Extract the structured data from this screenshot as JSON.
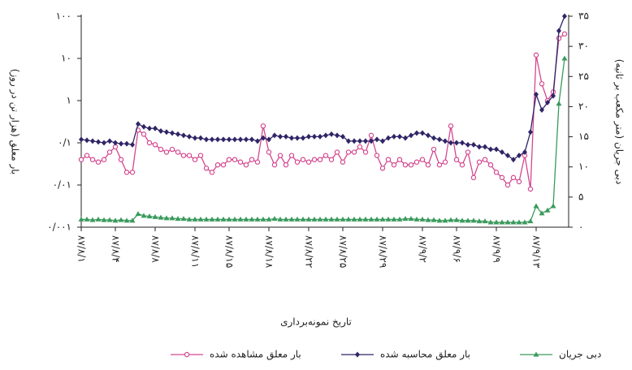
{
  "chart_data": {
    "type": "line",
    "x_label": "تاریخ نمونه‌برداری",
    "y_label": "بار معلق (هزار تن در روز)",
    "y2_label": "دبی جریان (متر مکعب بر ثانیه)",
    "categories": [
      "۸۷/۸/۱",
      null,
      null,
      null,
      null,
      null,
      "۸۷/۸/۴",
      null,
      null,
      null,
      null,
      null,
      null,
      "۸۷/۸/۸",
      null,
      null,
      null,
      null,
      null,
      null,
      "۸۷/۸/۱۱",
      null,
      null,
      null,
      null,
      null,
      "۸۷/۸/۱۵",
      null,
      null,
      null,
      null,
      null,
      null,
      "۸۷/۸/۱۸",
      null,
      null,
      null,
      null,
      null,
      null,
      "۸۷/۸/۲۲",
      null,
      null,
      null,
      null,
      null,
      "۸۷/۸/۲۵",
      null,
      null,
      null,
      null,
      null,
      null,
      "۸۷/۸/۲۹",
      null,
      null,
      null,
      null,
      null,
      null,
      "۸۷/۹/۲",
      null,
      null,
      null,
      null,
      null,
      "۸۷/۹/۶",
      null,
      null,
      null,
      null,
      null,
      null,
      "۸۷/۹/۹",
      null,
      null,
      null,
      null,
      null,
      null,
      "۸۷/۹/۱۳",
      null,
      null,
      null,
      null,
      null
    ],
    "ylog": true,
    "ylim": [
      0.001,
      100
    ],
    "yticks": [
      {
        "value": 0.001,
        "label": "۰/۰۰۱"
      },
      {
        "value": 0.01,
        "label": "۰/۰۱"
      },
      {
        "value": 0.1,
        "label": "۰/۱"
      },
      {
        "value": 1,
        "label": "۱"
      },
      {
        "value": 10,
        "label": "۱۰"
      },
      {
        "value": 100,
        "label": "۱۰۰"
      }
    ],
    "y2lim": [
      0,
      35
    ],
    "y2ticks": [
      {
        "value": 0,
        "label": "۰"
      },
      {
        "value": 5,
        "label": "۵"
      },
      {
        "value": 10,
        "label": "۱۰"
      },
      {
        "value": 15,
        "label": "۱۵"
      },
      {
        "value": 20,
        "label": "۲۰"
      },
      {
        "value": 25,
        "label": "۲۵"
      },
      {
        "value": 30,
        "label": "۳۰"
      },
      {
        "value": 35,
        "label": "۳۵"
      }
    ],
    "series": [
      {
        "name": "بار معلق مشاهده شده",
        "color": "#d4478f",
        "marker": "circle",
        "values": [
          0.04,
          0.05,
          0.04,
          0.035,
          0.04,
          0.06,
          0.08,
          0.04,
          0.02,
          0.02,
          0.2,
          0.16,
          0.1,
          0.09,
          0.07,
          0.06,
          0.07,
          0.06,
          0.05,
          0.05,
          0.04,
          0.05,
          0.025,
          0.02,
          0.03,
          0.03,
          0.04,
          0.04,
          0.035,
          0.03,
          0.04,
          0.035,
          0.25,
          0.06,
          0.03,
          0.05,
          0.03,
          0.05,
          0.035,
          0.04,
          0.035,
          0.04,
          0.04,
          0.05,
          0.04,
          0.06,
          0.035,
          0.06,
          0.06,
          0.08,
          0.06,
          0.15,
          0.05,
          0.025,
          0.04,
          0.03,
          0.04,
          0.03,
          0.03,
          0.035,
          0.04,
          0.03,
          0.07,
          0.03,
          0.035,
          0.25,
          0.04,
          0.03,
          0.06,
          0.015,
          0.035,
          0.04,
          0.03,
          0.02,
          0.015,
          0.01,
          0.015,
          0.012,
          0.05,
          0.008,
          12,
          2.5,
          1.0,
          1.6,
          30,
          38
        ]
      },
      {
        "name": "بار معلق محاسبه شده",
        "color": "#2e2566",
        "marker": "diamond",
        "values": [
          0.12,
          0.115,
          0.11,
          0.105,
          0.1,
          0.11,
          0.1,
          0.095,
          0.095,
          0.09,
          0.28,
          0.24,
          0.22,
          0.22,
          0.19,
          0.18,
          0.17,
          0.16,
          0.15,
          0.14,
          0.13,
          0.13,
          0.12,
          0.12,
          0.12,
          0.12,
          0.12,
          0.12,
          0.12,
          0.12,
          0.12,
          0.11,
          0.13,
          0.12,
          0.15,
          0.14,
          0.14,
          0.13,
          0.13,
          0.13,
          0.14,
          0.14,
          0.14,
          0.15,
          0.16,
          0.15,
          0.14,
          0.11,
          0.11,
          0.11,
          0.11,
          0.11,
          0.12,
          0.11,
          0.13,
          0.14,
          0.14,
          0.13,
          0.15,
          0.17,
          0.17,
          0.15,
          0.13,
          0.12,
          0.11,
          0.1,
          0.1,
          0.1,
          0.09,
          0.09,
          0.08,
          0.08,
          0.07,
          0.07,
          0.06,
          0.05,
          0.04,
          0.05,
          0.06,
          0.18,
          1.4,
          0.6,
          0.9,
          1.3,
          45,
          100
        ]
      },
      {
        "name": "دبی جریان",
        "color": "#3a9a5c",
        "marker": "triangle",
        "axis": "y2",
        "values": [
          1.3,
          1.3,
          1.2,
          1.3,
          1.2,
          1.2,
          1.1,
          1.2,
          1.1,
          1.1,
          2.2,
          1.9,
          1.8,
          1.7,
          1.6,
          1.5,
          1.5,
          1.4,
          1.4,
          1.3,
          1.3,
          1.3,
          1.3,
          1.3,
          1.3,
          1.3,
          1.3,
          1.3,
          1.3,
          1.3,
          1.3,
          1.3,
          1.3,
          1.3,
          1.4,
          1.3,
          1.3,
          1.3,
          1.3,
          1.3,
          1.3,
          1.3,
          1.3,
          1.3,
          1.3,
          1.3,
          1.3,
          1.3,
          1.3,
          1.3,
          1.3,
          1.3,
          1.3,
          1.3,
          1.3,
          1.3,
          1.3,
          1.4,
          1.4,
          1.3,
          1.3,
          1.2,
          1.2,
          1.1,
          1.1,
          1.2,
          1.2,
          1.1,
          1.1,
          1.1,
          1.0,
          1.0,
          0.8,
          0.8,
          0.8,
          0.8,
          0.8,
          0.8,
          0.8,
          1.0,
          3.5,
          2.3,
          2.8,
          3.5,
          20.5,
          28
        ]
      }
    ]
  }
}
